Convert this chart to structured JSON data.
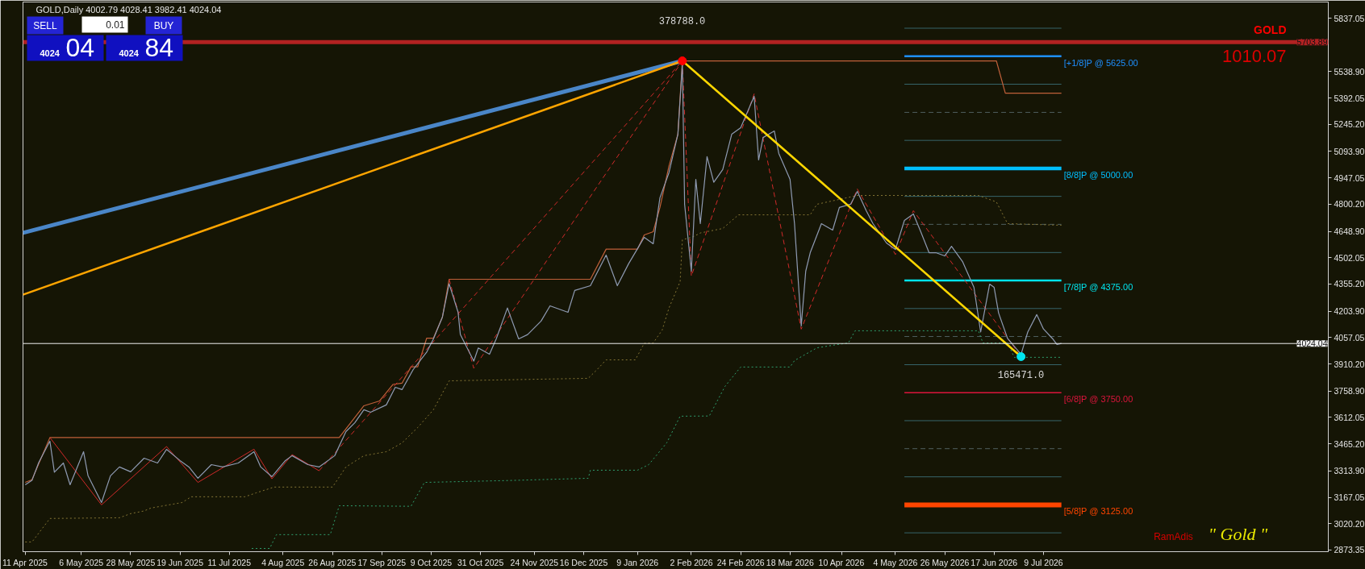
{
  "chart_data": {
    "type": "line",
    "title": "GOLD,Daily 4002.79 4028.41 3982.41 4024.04",
    "xlim": [
      "2025-04-10",
      "2026-11-13"
    ],
    "ylim": [
      2864,
      5927
    ],
    "xticks": [
      {
        "value": "2025-04-11",
        "label": "11 Apr 2025"
      },
      {
        "value": "2025-05-06",
        "label": "6 May 2025"
      },
      {
        "value": "2025-05-28",
        "label": "28 May 2025"
      },
      {
        "value": "2025-06-19",
        "label": "19 Jun 2025"
      },
      {
        "value": "2025-07-11",
        "label": "11 Jul 2025"
      },
      {
        "value": "2025-08-04",
        "label": "4 Aug 2025"
      },
      {
        "value": "2025-08-26",
        "label": "26 Aug 2025"
      },
      {
        "value": "2025-09-17",
        "label": "17 Sep 2025"
      },
      {
        "value": "2025-10-09",
        "label": "9 Oct 2025"
      },
      {
        "value": "2025-10-31",
        "label": "31 Oct 2025"
      },
      {
        "value": "2025-11-24",
        "label": "24 Nov 2025"
      },
      {
        "value": "2025-12-16",
        "label": "16 Dec 2025"
      },
      {
        "value": "2026-01-09",
        "label": "9 Jan 2026"
      },
      {
        "value": "2026-02-02",
        "label": "2 Feb 2026"
      },
      {
        "value": "2026-02-24",
        "label": "24 Feb 2026"
      },
      {
        "value": "2026-03-18",
        "label": "18 Mar 2026"
      },
      {
        "value": "2026-04-10",
        "label": "10 Apr 2026"
      },
      {
        "value": "2026-05-04",
        "label": "4 May 2026"
      },
      {
        "value": "2026-05-26",
        "label": "26 May 2026"
      },
      {
        "value": "2026-06-17",
        "label": "17 Jun 2026"
      },
      {
        "value": "2026-07-09",
        "label": "9 Jul 2026"
      }
    ],
    "yticks": [
      2873.35,
      {
        "value": 3020.2,
        "label": "3020.20"
      },
      3167.05,
      {
        "value": 3313.9,
        "label": "3313.90"
      },
      {
        "value": 3465.2,
        "label": "3465.20"
      },
      3612.05,
      {
        "value": 3758.9,
        "label": "3758.90"
      },
      {
        "value": 3910.2,
        "label": "3910.20"
      },
      4057.05,
      {
        "value": 4203.9,
        "label": "4203.90"
      },
      {
        "value": 4355.2,
        "label": "4355.20"
      },
      4502.05,
      {
        "value": 4648.9,
        "label": "4648.90"
      },
      {
        "value": 4800.2,
        "label": "4800.20"
      },
      4947.05,
      {
        "value": 5093.9,
        "label": "5093.90"
      },
      {
        "value": 5245.2,
        "label": "5245.20"
      },
      5392.05,
      {
        "value": 5538.9,
        "label": "5538.90"
      },
      5837.05
    ],
    "ref_lines": [
      {
        "axis": "y",
        "value": 5703.89,
        "label": "5703.89",
        "color": "#b22222"
      },
      {
        "axis": "y",
        "value": 4024.04,
        "label": "4024.04",
        "color": "#f0f0f0"
      }
    ],
    "annotations": [
      "SELL",
      "0.01",
      "BUY",
      "4024",
      "04",
      "4024",
      "84",
      "GOLD",
      "1010.07",
      "RamAdis",
      "\" Gold \"",
      "378788.0",
      "165471.0"
    ],
    "series": [
      {
        "x": [
          "2026-05-08",
          "2026-07-17"
        ],
        "values": [
          5781,
          5781
        ],
        "color": "#37656b"
      },
      {
        "name": "[+1/8]P @ 5625.00",
        "x": [
          "2026-05-08",
          "2026-07-17"
        ],
        "values": [
          5625,
          5625
        ],
        "color": "#1e90ff"
      },
      {
        "x": [
          "2026-05-08",
          "2026-07-17"
        ],
        "values": [
          5469,
          5469
        ],
        "color": "#37656b"
      },
      {
        "x": [
          "2026-05-08",
          "2026-07-17"
        ],
        "values": [
          5312,
          5312
        ],
        "color": "#4f5f5f",
        "line_style": "dashed"
      },
      {
        "x": [
          "2026-05-08",
          "2026-07-17"
        ],
        "values": [
          5156,
          5156
        ],
        "color": "#37656b"
      },
      {
        "name": "[8/8]P @ 5000.00",
        "x": [
          "2026-05-08",
          "2026-07-17"
        ],
        "values": [
          5000,
          5000
        ],
        "color": "#00bfff"
      },
      {
        "x": [
          "2026-05-08",
          "2026-07-17"
        ],
        "values": [
          4844,
          4844
        ],
        "color": "#37656b"
      },
      {
        "x": [
          "2026-05-08",
          "2026-07-17"
        ],
        "values": [
          4688,
          4688
        ],
        "color": "#4f5f5f",
        "line_style": "dashed"
      },
      {
        "x": [
          "2026-05-08",
          "2026-07-17"
        ],
        "values": [
          4531,
          4531
        ],
        "color": "#37656b"
      },
      {
        "name": "[7/8]P @ 4375.00",
        "x": [
          "2026-05-08",
          "2026-07-17"
        ],
        "values": [
          4375,
          4375
        ],
        "color": "#00e5ee"
      },
      {
        "x": [
          "2026-05-08",
          "2026-07-17"
        ],
        "values": [
          4219,
          4219
        ],
        "color": "#37656b"
      },
      {
        "x": [
          "2026-05-08",
          "2026-07-17"
        ],
        "values": [
          4063,
          4063
        ],
        "color": "#4f5f5f",
        "line_style": "dashed"
      },
      {
        "x": [
          "2026-05-08",
          "2026-07-17"
        ],
        "values": [
          3906,
          3906
        ],
        "color": "#37656b"
      },
      {
        "name": "[6/8]P @ 3750.00",
        "x": [
          "2026-05-08",
          "2026-07-17"
        ],
        "values": [
          3750,
          3750
        ],
        "color": "#dc143c"
      },
      {
        "x": [
          "2026-05-08",
          "2026-07-17"
        ],
        "values": [
          3594,
          3594
        ],
        "color": "#37656b"
      },
      {
        "x": [
          "2026-05-08",
          "2026-07-17"
        ],
        "values": [
          3438,
          3438
        ],
        "color": "#4f5f5f",
        "line_style": "dashed"
      },
      {
        "x": [
          "2026-05-08",
          "2026-07-17"
        ],
        "values": [
          3281,
          3281
        ],
        "color": "#37656b"
      },
      {
        "name": "[5/8]P @ 3125.00",
        "x": [
          "2026-05-08",
          "2026-07-17"
        ],
        "values": [
          3125,
          3125
        ],
        "color": "#ff4500"
      },
      {
        "x": [
          "2026-05-08",
          "2026-07-17"
        ],
        "values": [
          2969,
          2969
        ],
        "color": "#37656b"
      },
      {
        "color": "#c0603a",
        "x": [
          "2025-04-11",
          "2025-04-14",
          "2025-04-22",
          "2025-08-29",
          "2025-09-09",
          "2025-09-16",
          "2025-09-22",
          "2025-09-26",
          "2025-09-30",
          "2025-10-03",
          "2025-10-07",
          "2025-10-10",
          "2025-10-14",
          "2025-10-17",
          "2025-12-19",
          "2025-12-26",
          "2026-01-09",
          "2026-01-12",
          "2026-01-16",
          "2026-01-19",
          "2026-01-23",
          "2026-01-27",
          "2026-01-29",
          "2026-06-18",
          "2026-06-22",
          "2026-07-17"
        ],
        "values": [
          3250,
          3265,
          3500,
          3500,
          3677,
          3704,
          3796,
          3803,
          3894,
          3894,
          4054,
          4054,
          4171,
          4382,
          4382,
          4550,
          4550,
          4629,
          4647,
          4782,
          5011,
          5190,
          5599,
          5599,
          5419,
          5419
        ]
      },
      {
        "color": "#857535",
        "line_style": "dotted",
        "x": [
          "2025-04-11",
          "2025-04-14",
          "2025-04-22",
          "2025-05-23",
          "2025-05-28",
          "2025-06-03",
          "2025-06-06",
          "2025-06-20",
          "2025-06-24",
          "2025-07-18",
          "2025-07-23",
          "2025-07-31",
          "2025-08-26",
          "2025-09-01",
          "2025-09-09",
          "2025-09-19",
          "2025-09-26",
          "2025-10-03",
          "2025-10-10",
          "2025-10-17",
          "2025-12-18",
          "2025-12-22",
          "2025-12-26",
          "2026-01-08",
          "2026-01-12",
          "2026-01-16",
          "2026-01-20",
          "2026-01-23",
          "2026-01-28",
          "2026-01-29",
          "2026-02-03",
          "2026-02-06",
          "2026-02-16",
          "2026-02-23",
          "2026-03-27",
          "2026-03-30",
          "2026-04-17",
          "2026-06-10",
          "2026-06-18",
          "2026-06-23",
          "2026-07-17"
        ],
        "values": [
          2918,
          2918,
          3049,
          3053,
          3076,
          3091,
          3107,
          3138,
          3170,
          3170,
          3192,
          3224,
          3224,
          3336,
          3399,
          3421,
          3470,
          3556,
          3655,
          3816,
          3830,
          3879,
          3933,
          3933,
          4025,
          4027,
          4099,
          4221,
          4369,
          4602,
          4620,
          4640,
          4665,
          4741,
          4741,
          4800,
          4849,
          4849,
          4813,
          4692,
          4683
        ]
      },
      {
        "color": "#2f9f6f",
        "line_style": "dotted",
        "x": [
          "2025-07-21",
          "2025-07-29",
          "2025-08-01",
          "2025-08-25",
          "2025-08-29",
          "2025-09-30",
          "2025-10-06",
          "2025-11-14",
          "2025-12-18",
          "2025-12-19",
          "2026-01-09",
          "2026-01-14",
          "2026-01-22",
          "2026-01-28",
          "2026-02-10",
          "2026-02-17",
          "2026-02-24",
          "2026-03-18",
          "2026-03-20",
          "2026-03-30",
          "2026-04-08",
          "2026-04-13",
          "2026-04-16",
          "2026-06-10",
          "2026-06-12",
          "2026-06-23",
          "2026-06-26",
          "2026-07-17"
        ],
        "values": [
          2882,
          2882,
          2959,
          2959,
          3120,
          3117,
          3250,
          3261,
          3273,
          3318,
          3318,
          3349,
          3470,
          3619,
          3620,
          3785,
          3893,
          3893,
          3929,
          4000,
          4018,
          4027,
          4095,
          4095,
          4027,
          4027,
          3947,
          3947
        ]
      },
      {
        "color": "#d02a2a",
        "x": [
          "2025-04-22",
          "2025-05-15",
          "2025-06-13",
          "2025-06-27",
          "2025-07-22",
          "2025-07-30",
          "2025-08-08",
          "2025-08-20"
        ],
        "values": [
          3500,
          3125,
          3450,
          3250,
          3435,
          3270,
          3405,
          3315
        ]
      },
      {
        "color": "#d02a2a",
        "line_style": "dashed",
        "x": [
          "2025-08-20",
          "2026-01-29",
          "2026-02-02",
          "2026-03-02",
          "2026-03-23",
          "2026-04-17",
          "2026-05-04",
          "2026-05-12",
          "2026-06-29"
        ],
        "values": [
          3315,
          5599,
          4400,
          5415,
          4104,
          4885,
          4520,
          4764,
          3951
        ]
      },
      {
        "color": "#d02a2a",
        "line_style": "dashed",
        "x": [
          "2025-10-17",
          "2025-10-28",
          "2026-01-29"
        ],
        "values": [
          4382,
          3886,
          5599
        ]
      },
      {
        "color": "#4a86c8",
        "x": [
          "2025-04-10",
          "2026-01-29"
        ],
        "values": [
          4641,
          5599
        ]
      },
      {
        "color": "#ffa500",
        "x": [
          "2025-04-10",
          "2026-01-29"
        ],
        "values": [
          4296,
          5599
        ]
      },
      {
        "color": "#8f9bb3",
        "x": [
          "2025-04-11",
          "2025-04-14",
          "2025-04-17",
          "2025-04-22",
          "2025-04-24",
          "2025-04-28",
          "2025-05-01",
          "2025-05-07",
          "2025-05-09",
          "2025-05-15",
          "2025-05-19",
          "2025-05-23",
          "2025-05-28",
          "2025-06-03",
          "2025-06-09",
          "2025-06-13",
          "2025-06-19",
          "2025-06-23",
          "2025-06-27",
          "2025-07-03",
          "2025-07-08",
          "2025-07-15",
          "2025-07-22",
          "2025-07-25",
          "2025-07-30",
          "2025-08-05",
          "2025-08-08",
          "2025-08-15",
          "2025-08-20",
          "2025-08-27",
          "2025-09-01",
          "2025-09-05",
          "2025-09-09",
          "2025-09-12",
          "2025-09-19",
          "2025-09-23",
          "2025-09-26",
          "2025-10-01",
          "2025-10-07",
          "2025-10-10",
          "2025-10-14",
          "2025-10-17",
          "2025-10-21",
          "2025-10-22",
          "2025-10-28",
          "2025-10-30",
          "2025-11-04",
          "2025-11-07",
          "2025-11-12",
          "2025-11-17",
          "2025-11-21",
          "2025-11-27",
          "2025-12-01",
          "2025-12-09",
          "2025-12-12",
          "2025-12-19",
          "2025-12-26",
          "2025-12-31",
          "2026-01-05",
          "2026-01-12",
          "2026-01-16",
          "2026-01-19",
          "2026-01-23",
          "2026-01-27",
          "2026-01-29",
          "2026-01-30",
          "2026-02-02",
          "2026-02-04",
          "2026-02-06",
          "2026-02-09",
          "2026-02-12",
          "2026-02-16",
          "2026-02-20",
          "2026-02-24",
          "2026-03-02",
          "2026-03-04",
          "2026-03-06",
          "2026-03-11",
          "2026-03-13",
          "2026-03-18",
          "2026-03-20",
          "2026-03-23",
          "2026-03-25",
          "2026-03-27",
          "2026-04-01",
          "2026-04-06",
          "2026-04-09",
          "2026-04-14",
          "2026-04-17",
          "2026-04-21",
          "2026-04-24",
          "2026-04-30",
          "2026-05-04",
          "2026-05-08",
          "2026-05-12",
          "2026-05-15",
          "2026-05-19",
          "2026-05-22",
          "2026-05-26",
          "2026-05-29",
          "2026-06-03",
          "2026-06-08",
          "2026-06-11",
          "2026-06-15",
          "2026-06-17",
          "2026-06-19",
          "2026-06-23",
          "2026-06-29",
          "2026-07-02",
          "2026-07-06",
          "2026-07-09",
          "2026-07-13",
          "2026-07-15",
          "2026-07-17"
        ],
        "values": [
          3237,
          3261,
          3360,
          3480,
          3307,
          3358,
          3237,
          3421,
          3287,
          3138,
          3287,
          3336,
          3309,
          3385,
          3358,
          3434,
          3372,
          3336,
          3273,
          3349,
          3336,
          3358,
          3421,
          3336,
          3282,
          3372,
          3399,
          3349,
          3336,
          3399,
          3533,
          3583,
          3655,
          3641,
          3682,
          3780,
          3767,
          3879,
          3976,
          4050,
          4171,
          4357,
          4198,
          4074,
          3926,
          3999,
          3964,
          4050,
          4222,
          4050,
          4074,
          4149,
          4234,
          4198,
          4320,
          4346,
          4517,
          4346,
          4468,
          4616,
          4580,
          4836,
          4975,
          5190,
          5581,
          4800,
          4427,
          4939,
          4692,
          5065,
          4923,
          4993,
          5190,
          5226,
          5402,
          5047,
          5172,
          5208,
          5083,
          4939,
          4692,
          4122,
          4427,
          4530,
          4692,
          4656,
          4782,
          4800,
          4872,
          4764,
          4692,
          4584,
          4548,
          4710,
          4746,
          4656,
          4530,
          4530,
          4512,
          4566,
          4479,
          4337,
          4088,
          4355,
          4337,
          4194,
          4052,
          3964,
          4088,
          4185,
          4105,
          4052,
          4019,
          4024.04
        ]
      },
      {
        "color": "#ffd700",
        "x": [
          "2026-01-29",
          "2026-06-29"
        ],
        "values": [
          5599,
          3951
        ]
      },
      {
        "type": "scatter",
        "marker": "circle",
        "x": [
          "2026-01-29",
          "2026-06-29"
        ],
        "values": [
          5599,
          3951
        ],
        "colors": [
          "#ff0000",
          "#00e5ee"
        ]
      }
    ]
  }
}
